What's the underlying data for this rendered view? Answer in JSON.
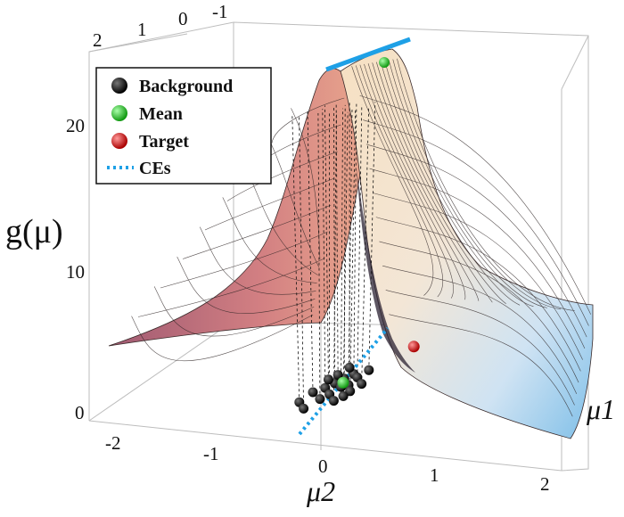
{
  "chart_data": {
    "type": "surface3d",
    "title": "",
    "zlabel": "g(μ)",
    "xlabel": "μ2",
    "ylabel": "μ1",
    "x_ticks": [
      "-2",
      "-1",
      "0",
      "1",
      "2"
    ],
    "back_ticks": [
      "2",
      "1",
      "0",
      "-1"
    ],
    "z_ticks": [
      "0",
      "10",
      "20"
    ],
    "zlim": [
      0,
      24
    ],
    "legend": {
      "position": "top-left",
      "entries": [
        {
          "label": "Background",
          "marker": "sphere",
          "color": "#000000"
        },
        {
          "label": "Mean",
          "marker": "sphere",
          "color": "#22cc22"
        },
        {
          "label": "Target",
          "marker": "sphere",
          "color": "#dd1111"
        },
        {
          "label": "CEs",
          "marker": "dotted-line",
          "color": "#1ea0e6"
        }
      ]
    },
    "series": [
      {
        "name": "Background",
        "points": [
          [
            -0.1,
            -0.4
          ],
          [
            0.0,
            -0.2
          ],
          [
            0.05,
            -0.5
          ],
          [
            0.15,
            -0.1
          ],
          [
            0.2,
            -0.3
          ],
          [
            0.25,
            0.0
          ],
          [
            0.3,
            -0.2
          ],
          [
            0.35,
            0.1
          ],
          [
            0.4,
            -0.05
          ],
          [
            0.45,
            0.2
          ],
          [
            0.5,
            0.0
          ],
          [
            0.55,
            0.15
          ],
          [
            0.6,
            -0.1
          ],
          [
            0.65,
            0.3
          ],
          [
            0.3,
            0.3
          ],
          [
            0.2,
            0.15
          ],
          [
            0.45,
            -0.3
          ],
          [
            0.55,
            -0.2
          ],
          [
            0.1,
            0.05
          ],
          [
            0.7,
            0.05
          ]
        ]
      },
      {
        "name": "Mean",
        "points": [
          [
            0.38,
            0.03
          ]
        ]
      },
      {
        "name": "Target",
        "points": [
          [
            1.1,
            0.8
          ]
        ]
      },
      {
        "name": "CEs",
        "points": [
          [
            0.0,
            -1.0
          ],
          [
            0.8,
            1.0
          ]
        ]
      }
    ],
    "colors": {
      "surface_low": "#7fc4ee",
      "surface_mid": "#f5ddbc",
      "surface_high": "#c06a76",
      "ce_line": "#1ea0e6"
    }
  }
}
